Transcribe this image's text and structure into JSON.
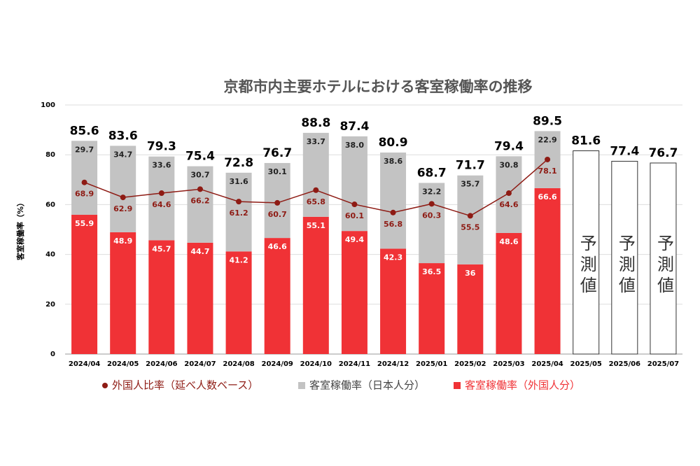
{
  "chart_data": {
    "type": "stacked-bar-line",
    "title": "京都市内主要ホテルにおける客室稼働率の推移",
    "y_axis_label": "客室稼働率（%）",
    "categories": [
      "2024/04",
      "2024/05",
      "2024/06",
      "2024/07",
      "2024/08",
      "2024/09",
      "2024/10",
      "2024/11",
      "2024/12",
      "2025/01",
      "2025/02",
      "2025/03",
      "2025/04",
      "2025/05",
      "2025/06",
      "2025/07"
    ],
    "ylim": [
      0,
      100
    ],
    "yticks": [
      0,
      20,
      40,
      60,
      80,
      100
    ],
    "grid": true,
    "legend": "bottom",
    "series": [
      {
        "name": "客室稼働率（外国人分）",
        "kind": "bar",
        "color": "#f03236",
        "values": [
          55.9,
          48.9,
          45.7,
          44.7,
          41.2,
          46.6,
          55.1,
          49.4,
          42.3,
          36.5,
          36.0,
          48.6,
          66.6,
          null,
          null,
          null
        ]
      },
      {
        "name": "客室稼働率（日本人分）",
        "kind": "bar",
        "color": "#c3c3c3",
        "values": [
          29.7,
          34.7,
          33.6,
          30.7,
          31.6,
          30.1,
          33.7,
          38.0,
          38.6,
          32.2,
          35.7,
          30.8,
          22.9,
          null,
          null,
          null
        ],
        "value_labels": [
          "29.7",
          "34.7",
          "33.6",
          "30.7",
          "31.6",
          "30.1",
          "33.7",
          "38.0",
          "38.6",
          "32.2",
          "35.7",
          "30.8",
          "22.9",
          null,
          null,
          null
        ]
      },
      {
        "name": "外国人比率（延べ人数ベース）",
        "kind": "line",
        "color": "#8e1b14",
        "values": [
          68.9,
          62.9,
          64.6,
          66.2,
          61.2,
          60.7,
          65.8,
          60.1,
          56.8,
          60.3,
          55.5,
          64.6,
          78.1,
          null,
          null,
          null
        ]
      }
    ],
    "totals": [
      85.6,
      83.6,
      79.3,
      75.4,
      72.8,
      76.7,
      88.8,
      87.4,
      80.9,
      68.7,
      71.7,
      79.4,
      89.5,
      null,
      null,
      null
    ],
    "forecast": {
      "label": "予測値",
      "values": [
        null,
        null,
        null,
        null,
        null,
        null,
        null,
        null,
        null,
        null,
        null,
        null,
        null,
        81.6,
        77.4,
        76.7
      ]
    }
  }
}
